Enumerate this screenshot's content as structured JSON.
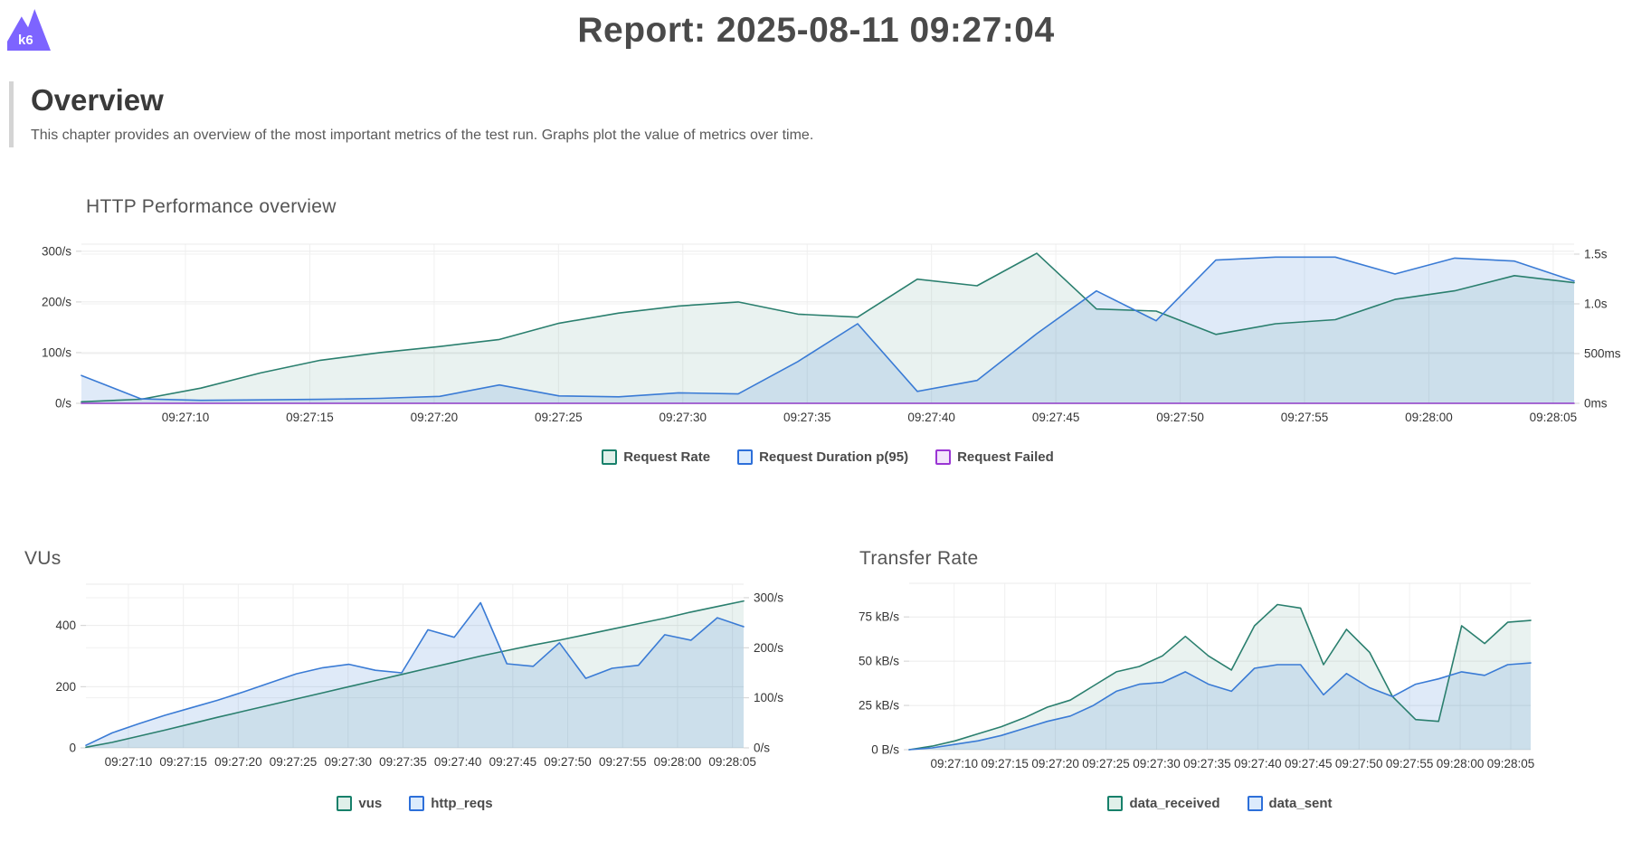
{
  "header": {
    "logo_text": "k6",
    "logo_color": "#7d64ff",
    "title": "Report: 2025-08-11 09:27:04"
  },
  "overview": {
    "heading": "Overview",
    "description": "This chapter provides an overview of the most important metrics of the test run. Graphs plot the value of metrics over time."
  },
  "chart_data": [
    {
      "type": "area",
      "title": "HTTP Performance overview",
      "x_ticks": [
        "09:27:10",
        "09:27:15",
        "09:27:20",
        "09:27:25",
        "09:27:30",
        "09:27:35",
        "09:27:40",
        "09:27:45",
        "09:27:50",
        "09:27:55",
        "09:28:00",
        "09:28:05"
      ],
      "y_left": {
        "unit": "/s",
        "max": 314,
        "ticks": [
          {
            "label": "0/s",
            "value": 0
          },
          {
            "label": "100/s",
            "value": 100
          },
          {
            "label": "200/s",
            "value": 200
          },
          {
            "label": "300/s",
            "value": 300
          }
        ]
      },
      "y_right": {
        "unit": "ms",
        "max": 1600,
        "ticks": [
          {
            "label": "0ms",
            "value": 0
          },
          {
            "label": "500ms",
            "value": 500
          },
          {
            "label": "1.0s",
            "value": 1000
          },
          {
            "label": "1.5s",
            "value": 1500
          }
        ]
      },
      "series": [
        {
          "name": "Request Rate",
          "axis": "left",
          "unit": "/s",
          "color": "#2a7f6e",
          "fill": "rgba(42,127,110,0.10)",
          "marker": {
            "border": "#17806a",
            "fill": "#e0f0ea"
          },
          "values": [
            3,
            8,
            30,
            60,
            85,
            100,
            112,
            126,
            158,
            178,
            192,
            200,
            176,
            170,
            245,
            232,
            296,
            186,
            182,
            136,
            157,
            165,
            205,
            222,
            252,
            238
          ]
        },
        {
          "name": "Request Duration p(95)",
          "axis": "right",
          "unit": "ms",
          "color": "#3a7bd5",
          "fill": "rgba(58,123,213,0.16)",
          "marker": {
            "border": "#2d6fd9",
            "fill": "#dcebfc"
          },
          "values": [
            280,
            45,
            30,
            35,
            40,
            50,
            70,
            185,
            75,
            65,
            105,
            95,
            420,
            800,
            120,
            230,
            700,
            1130,
            830,
            1440,
            1470,
            1470,
            1300,
            1460,
            1430,
            1230
          ]
        },
        {
          "name": "Request Failed",
          "axis": "left",
          "unit": "/s",
          "color": "#8f3cc6",
          "fill": "rgba(143,60,198,0.15)",
          "marker": {
            "border": "#9a35d4",
            "fill": "#f3e4fb"
          },
          "values": [
            0,
            0,
            0,
            0,
            0,
            0,
            0,
            0,
            0,
            0,
            0,
            0,
            0,
            0,
            0,
            0,
            0,
            0,
            0,
            0,
            0,
            0,
            0,
            0,
            0,
            0
          ]
        }
      ]
    },
    {
      "type": "area",
      "title": "VUs",
      "x_ticks": [
        "09:27:10",
        "09:27:15",
        "09:27:20",
        "09:27:25",
        "09:27:30",
        "09:27:35",
        "09:27:40",
        "09:27:45",
        "09:27:50",
        "09:27:55",
        "09:28:00",
        "09:28:05"
      ],
      "y_left": {
        "unit": "VUs",
        "max": 535,
        "ticks": [
          {
            "label": "0",
            "value": 0
          },
          {
            "label": "200",
            "value": 200
          },
          {
            "label": "400",
            "value": 400
          }
        ]
      },
      "y_right": {
        "unit": "/s",
        "max": 327,
        "ticks": [
          {
            "label": "0/s",
            "value": 0
          },
          {
            "label": "100/s",
            "value": 100
          },
          {
            "label": "200/s",
            "value": 200
          },
          {
            "label": "300/s",
            "value": 300
          }
        ]
      },
      "series": [
        {
          "name": "vus",
          "axis": "left",
          "unit": "VUs",
          "color": "#2a7f6e",
          "fill": "rgba(42,127,110,0.10)",
          "marker": {
            "border": "#17806a",
            "fill": "#e0f0ea"
          },
          "values": [
            2,
            18,
            38,
            58,
            79,
            100,
            120,
            140,
            160,
            180,
            200,
            220,
            240,
            260,
            280,
            300,
            318,
            336,
            352,
            370,
            388,
            406,
            424,
            444,
            462,
            480
          ]
        },
        {
          "name": "http_reqs",
          "axis": "right",
          "unit": "/s",
          "color": "#3a7bd5",
          "fill": "rgba(58,123,213,0.16)",
          "marker": {
            "border": "#2d6fd9",
            "fill": "#dcebfc"
          },
          "values": [
            5,
            30,
            48,
            65,
            80,
            95,
            112,
            130,
            148,
            160,
            167,
            155,
            150,
            236,
            221,
            290,
            168,
            163,
            210,
            139,
            159,
            165,
            226,
            215,
            260,
            242
          ]
        }
      ]
    },
    {
      "type": "area",
      "title": "Transfer Rate",
      "x_ticks": [
        "09:27:10",
        "09:27:15",
        "09:27:20",
        "09:27:25",
        "09:27:30",
        "09:27:35",
        "09:27:40",
        "09:27:45",
        "09:27:50",
        "09:27:55",
        "09:28:00",
        "09:28:05"
      ],
      "y_left": {
        "unit": "kB/s",
        "max": 94,
        "ticks": [
          {
            "label": "0 B/s",
            "value": 0
          },
          {
            "label": "25 kB/s",
            "value": 25
          },
          {
            "label": "50 kB/s",
            "value": 50
          },
          {
            "label": "75 kB/s",
            "value": 75
          }
        ]
      },
      "series": [
        {
          "name": "data_received",
          "axis": "left",
          "unit": "kB/s",
          "color": "#2a7f6e",
          "fill": "rgba(42,127,110,0.10)",
          "marker": {
            "border": "#17806a",
            "fill": "#e0f0ea"
          },
          "values": [
            0,
            2,
            5,
            9,
            13,
            18,
            24,
            28,
            36,
            44,
            47,
            53,
            64,
            53,
            45,
            70,
            82,
            80,
            48,
            68,
            55,
            30,
            17,
            16,
            70,
            60,
            72,
            73
          ]
        },
        {
          "name": "data_sent",
          "axis": "left",
          "unit": "kB/s",
          "color": "#3a7bd5",
          "fill": "rgba(58,123,213,0.16)",
          "marker": {
            "border": "#2d6fd9",
            "fill": "#dcebfc"
          },
          "values": [
            0,
            1,
            3,
            5,
            8,
            12,
            16,
            19,
            25,
            33,
            37,
            38,
            44,
            37,
            33,
            46,
            48,
            48,
            31,
            43,
            35,
            30,
            37,
            40,
            44,
            42,
            48,
            49
          ]
        }
      ]
    }
  ]
}
